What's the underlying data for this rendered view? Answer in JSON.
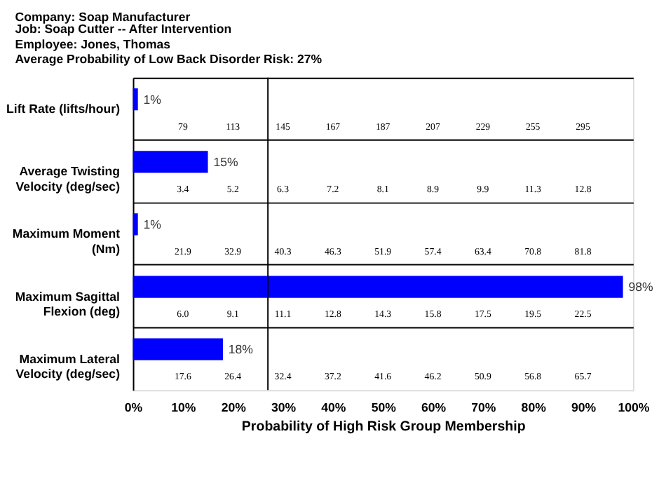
{
  "chart_data": {
    "type": "bar",
    "orientation": "horizontal",
    "title": "Company: Soap Manufacturer",
    "subtitle": "Job:  Soap Cutter -- After Intervention\nEmployee:  Jones, Thomas\nAverage Probability of Low Back Disorder Risk: 27%",
    "xlabel": "Probability of High Risk Group Membership",
    "categories": [
      "Lift Rate (lifts/hour)",
      "Average Twisting\nVelocity (deg/sec)",
      "Maximum Moment\n(Nm)",
      "Maximum Sagittal\nFlexion (deg)",
      "Maximum Lateral\nVelocity (deg/sec)"
    ],
    "values": [
      1,
      15,
      1,
      98,
      18
    ],
    "color": "#0000ff",
    "value_labels": [
      "1%",
      "15%",
      "1%",
      "98%",
      "18%"
    ],
    "xlim": [
      0,
      100
    ],
    "xticks": [
      {
        "value": 0,
        "label": "0%"
      },
      {
        "value": 10,
        "label": "10%"
      },
      {
        "value": 20,
        "label": "20%"
      },
      {
        "value": 30,
        "label": "30%"
      },
      {
        "value": 40,
        "label": "40%"
      },
      {
        "value": 50,
        "label": "50%"
      },
      {
        "value": 60,
        "label": "60%"
      },
      {
        "value": 70,
        "label": "70%"
      },
      {
        "value": 80,
        "label": "80%"
      },
      {
        "value": 90,
        "label": "90%"
      },
      {
        "value": 100,
        "label": "100%"
      }
    ],
    "grid": "y",
    "ref_lines": [
      {
        "axis": "x",
        "value": 27,
        "label": null,
        "color": "#000000"
      }
    ],
    "annotations": [
      "79",
      "113",
      "145",
      "167",
      "187",
      "207",
      "229",
      "255",
      "295",
      "3.4",
      "5.2",
      "6.3",
      "7.2",
      "8.1",
      "8.9",
      "9.9",
      "11.3",
      "12.8",
      "21.9",
      "32.9",
      "40.3",
      "46.3",
      "51.9",
      "57.4",
      "63.4",
      "70.8",
      "81.8",
      "6.0",
      "9.1",
      "11.1",
      "12.8",
      "14.3",
      "15.8",
      "17.5",
      "19.5",
      "22.5",
      "17.6",
      "26.4",
      "32.4",
      "37.2",
      "41.6",
      "46.2",
      "50.9",
      "56.8",
      "65.7"
    ]
  }
}
